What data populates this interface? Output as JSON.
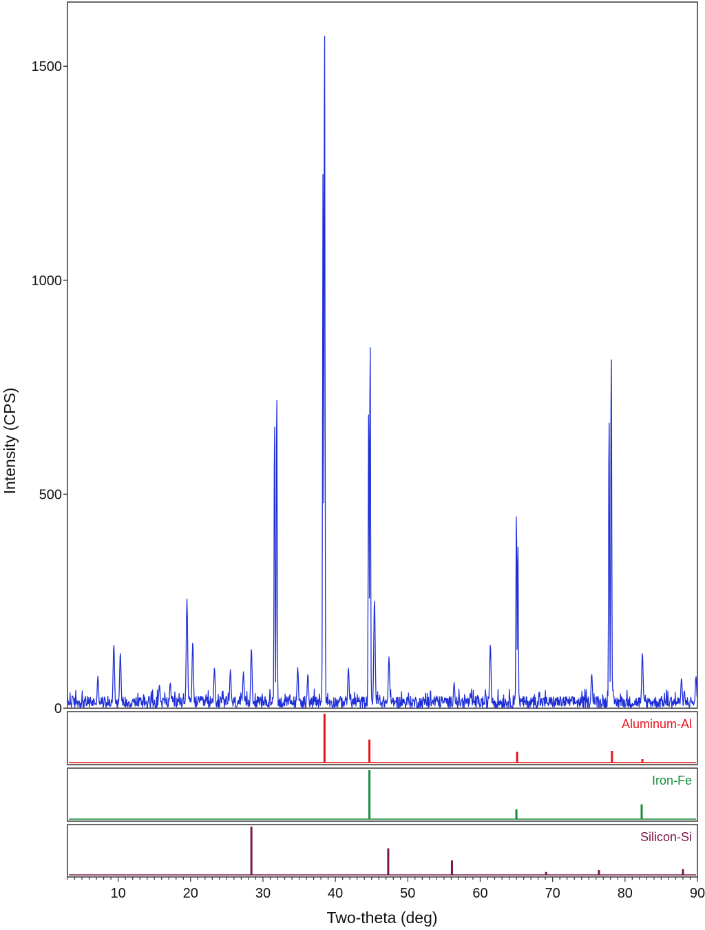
{
  "chart_data": {
    "type": "line",
    "xlabel": "Two-theta (deg)",
    "ylabel": "Intensity (CPS)",
    "xlim": [
      3,
      90
    ],
    "ylim": [
      0,
      1650
    ],
    "x_ticks": [
      10,
      20,
      30,
      40,
      50,
      60,
      70,
      80,
      90
    ],
    "y_ticks": [
      0,
      500,
      1000,
      1500
    ],
    "grid": false,
    "main_series": {
      "color": "#1f2fd6",
      "noise_level": 28,
      "peaks": [
        {
          "x": 7.2,
          "y": 75
        },
        {
          "x": 9.4,
          "y": 150
        },
        {
          "x": 10.3,
          "y": 130
        },
        {
          "x": 15.7,
          "y": 55
        },
        {
          "x": 17.2,
          "y": 60
        },
        {
          "x": 19.5,
          "y": 255
        },
        {
          "x": 20.3,
          "y": 155
        },
        {
          "x": 23.3,
          "y": 95
        },
        {
          "x": 25.5,
          "y": 90
        },
        {
          "x": 27.3,
          "y": 85
        },
        {
          "x": 28.4,
          "y": 140
        },
        {
          "x": 31.6,
          "y": 690
        },
        {
          "x": 31.9,
          "y": 755
        },
        {
          "x": 34.8,
          "y": 95
        },
        {
          "x": 36.2,
          "y": 80
        },
        {
          "x": 38.3,
          "y": 1310
        },
        {
          "x": 38.5,
          "y": 1650
        },
        {
          "x": 41.8,
          "y": 95
        },
        {
          "x": 44.6,
          "y": 720
        },
        {
          "x": 44.8,
          "y": 885
        },
        {
          "x": 45.4,
          "y": 255
        },
        {
          "x": 47.4,
          "y": 120
        },
        {
          "x": 56.4,
          "y": 60
        },
        {
          "x": 61.4,
          "y": 150
        },
        {
          "x": 65.0,
          "y": 470
        },
        {
          "x": 65.2,
          "y": 395
        },
        {
          "x": 75.4,
          "y": 80
        },
        {
          "x": 77.8,
          "y": 700
        },
        {
          "x": 78.1,
          "y": 855
        },
        {
          "x": 82.4,
          "y": 130
        },
        {
          "x": 87.8,
          "y": 70
        },
        {
          "x": 89.8,
          "y": 75
        }
      ]
    },
    "reference_patterns": [
      {
        "name": "Aluminum-Al",
        "color": "#e8141c",
        "peaks": [
          {
            "x": 38.5,
            "rel": 100
          },
          {
            "x": 44.7,
            "rel": 47
          },
          {
            "x": 65.1,
            "rel": 22
          },
          {
            "x": 78.2,
            "rel": 24
          },
          {
            "x": 82.4,
            "rel": 7
          }
        ]
      },
      {
        "name": "Iron-Fe",
        "color": "#168a3a",
        "peaks": [
          {
            "x": 44.7,
            "rel": 100
          },
          {
            "x": 65.0,
            "rel": 20
          },
          {
            "x": 82.3,
            "rel": 30
          }
        ]
      },
      {
        "name": "Silicon-Si",
        "color": "#7a1648",
        "peaks": [
          {
            "x": 28.4,
            "rel": 100
          },
          {
            "x": 47.3,
            "rel": 55
          },
          {
            "x": 56.1,
            "rel": 30
          },
          {
            "x": 69.1,
            "rel": 6
          },
          {
            "x": 76.4,
            "rel": 10
          },
          {
            "x": 88.0,
            "rel": 12
          }
        ]
      }
    ]
  }
}
